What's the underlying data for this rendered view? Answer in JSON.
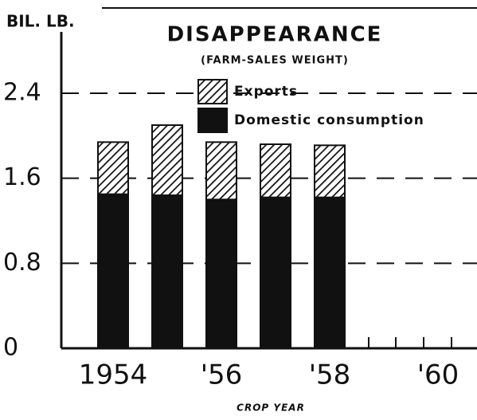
{
  "chart_data": {
    "type": "stacked-bar",
    "title": "DISAPPEARANCE",
    "subtitle": "(FARM-SALES WEIGHT)",
    "y_label": "BIL. LB.",
    "x_label": "CROP YEAR",
    "categories": [
      "1954",
      null,
      "'56",
      null,
      "'58",
      null,
      "'60"
    ],
    "series": [
      {
        "name": "Domestic consumption",
        "color": "#111111",
        "values": [
          1.45,
          1.44,
          1.4,
          1.42,
          1.42,
          null,
          null
        ]
      },
      {
        "name": "Exports",
        "color": "hatch",
        "values": [
          0.49,
          0.66,
          0.54,
          0.5,
          0.49,
          null,
          null
        ]
      }
    ],
    "ylim": [
      0,
      2.4
    ],
    "yticks": [
      0,
      0.8,
      1.6,
      2.4
    ],
    "grid": true
  }
}
